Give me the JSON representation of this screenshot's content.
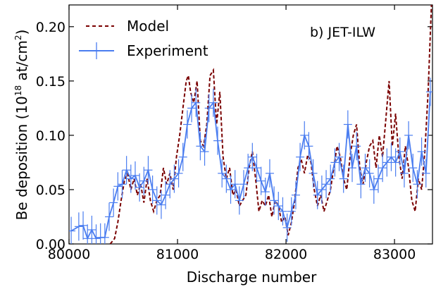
{
  "chart_data": {
    "type": "line",
    "annotation": "b) JET-ILW",
    "xlabel": "Discharge number",
    "ylabel": {
      "prefix": "Be deposition (10",
      "exp": "18",
      "mid": " at/cm",
      "exp2": "2",
      "suffix": ")"
    },
    "xlim": [
      80000,
      83350
    ],
    "ylim": [
      0.0,
      0.22
    ],
    "xticks": [
      80000,
      81000,
      82000,
      83000
    ],
    "xtick_labels": [
      "80000",
      "81000",
      "82000",
      "83000"
    ],
    "yticks": [
      0.0,
      0.05,
      0.1,
      0.15,
      0.2
    ],
    "ytick_labels": [
      "0.00",
      "0.05",
      "0.10",
      "0.15",
      "0.20"
    ],
    "grid": false,
    "legend_position": "top-left",
    "series": [
      {
        "name": "Model",
        "color": "#7a0000",
        "style": "dashed",
        "x": [
          80380,
          80420,
          80450,
          80480,
          80510,
          80540,
          80570,
          80600,
          80630,
          80660,
          80690,
          80720,
          80750,
          80780,
          80810,
          80840,
          80870,
          80900,
          80930,
          80960,
          80990,
          81020,
          81050,
          81080,
          81100,
          81120,
          81150,
          81180,
          81210,
          81240,
          81270,
          81300,
          81330,
          81360,
          81390,
          81420,
          81450,
          81480,
          81510,
          81540,
          81570,
          81600,
          81630,
          81660,
          81690,
          81720,
          81750,
          81780,
          81810,
          81840,
          81870,
          81900,
          81930,
          81960,
          81990,
          82020,
          82050,
          82080,
          82110,
          82140,
          82170,
          82200,
          82230,
          82260,
          82290,
          82320,
          82350,
          82380,
          82410,
          82440,
          82470,
          82500,
          82530,
          82560,
          82590,
          82620,
          82650,
          82680,
          82710,
          82740,
          82770,
          82800,
          82830,
          82860,
          82890,
          82920,
          82950,
          82980,
          83010,
          83040,
          83070,
          83100,
          83130,
          83160,
          83190,
          83220,
          83250,
          83280,
          83310,
          83340
        ],
        "y": [
          0.0,
          0.005,
          0.02,
          0.04,
          0.058,
          0.065,
          0.05,
          0.06,
          0.045,
          0.055,
          0.038,
          0.06,
          0.04,
          0.03,
          0.04,
          0.045,
          0.07,
          0.055,
          0.065,
          0.05,
          0.08,
          0.1,
          0.125,
          0.15,
          0.155,
          0.14,
          0.13,
          0.15,
          0.095,
          0.09,
          0.11,
          0.155,
          0.16,
          0.11,
          0.14,
          0.08,
          0.06,
          0.07,
          0.045,
          0.05,
          0.035,
          0.04,
          0.045,
          0.07,
          0.085,
          0.06,
          0.03,
          0.04,
          0.035,
          0.045,
          0.025,
          0.04,
          0.035,
          0.02,
          0.025,
          0.008,
          0.02,
          0.04,
          0.07,
          0.078,
          0.065,
          0.082,
          0.075,
          0.05,
          0.035,
          0.045,
          0.03,
          0.04,
          0.05,
          0.07,
          0.09,
          0.08,
          0.06,
          0.05,
          0.08,
          0.1,
          0.11,
          0.07,
          0.055,
          0.075,
          0.09,
          0.095,
          0.07,
          0.1,
          0.08,
          0.115,
          0.15,
          0.09,
          0.12,
          0.08,
          0.06,
          0.09,
          0.07,
          0.04,
          0.03,
          0.06,
          0.05,
          0.085,
          0.14,
          0.22
        ]
      },
      {
        "name": "Experiment",
        "color": "#4a7df0",
        "style": "solid-errorbars",
        "x": [
          80020,
          80090,
          80130,
          80170,
          80210,
          80250,
          80290,
          80330,
          80370,
          80410,
          80450,
          80490,
          80530,
          80570,
          80610,
          80650,
          80690,
          80730,
          80770,
          80810,
          80850,
          80890,
          80930,
          80970,
          81010,
          81050,
          81090,
          81130,
          81170,
          81210,
          81250,
          81290,
          81330,
          81370,
          81410,
          81450,
          81490,
          81530,
          81570,
          81610,
          81650,
          81690,
          81730,
          81770,
          81810,
          81850,
          81890,
          81930,
          81970,
          82010,
          82050,
          82090,
          82130,
          82170,
          82210,
          82250,
          82290,
          82330,
          82370,
          82410,
          82450,
          82490,
          82530,
          82570,
          82610,
          82650,
          82690,
          82730,
          82770,
          82810,
          82850,
          82890,
          82930,
          82970,
          83010,
          83050,
          83090,
          83130,
          83170,
          83210,
          83250,
          83290,
          83330
        ],
        "y": [
          0.012,
          0.016,
          0.017,
          0.005,
          0.013,
          0.005,
          0.006,
          0.006,
          0.025,
          0.038,
          0.053,
          0.055,
          0.068,
          0.06,
          0.063,
          0.052,
          0.058,
          0.068,
          0.05,
          0.04,
          0.036,
          0.045,
          0.055,
          0.06,
          0.065,
          0.08,
          0.11,
          0.125,
          0.13,
          0.09,
          0.085,
          0.125,
          0.13,
          0.095,
          0.065,
          0.06,
          0.05,
          0.055,
          0.04,
          0.055,
          0.07,
          0.08,
          0.07,
          0.058,
          0.048,
          0.065,
          0.04,
          0.035,
          0.03,
          0.015,
          0.03,
          0.045,
          0.08,
          0.1,
          0.09,
          0.065,
          0.045,
          0.05,
          0.055,
          0.06,
          0.075,
          0.08,
          0.06,
          0.11,
          0.07,
          0.09,
          0.055,
          0.07,
          0.065,
          0.05,
          0.06,
          0.07,
          0.075,
          0.08,
          0.075,
          0.085,
          0.065,
          0.1,
          0.07,
          0.055,
          0.085,
          0.065,
          0.14
        ],
        "yerr": 0.013
      }
    ]
  }
}
